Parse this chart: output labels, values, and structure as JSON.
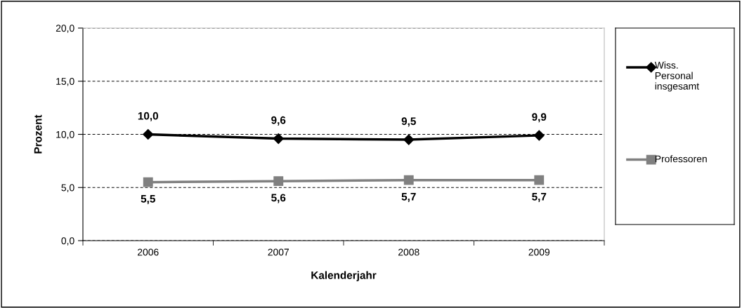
{
  "chart_data": {
    "type": "line",
    "xlabel": "Kalenderjahr",
    "ylabel": "Prozent",
    "categories": [
      "2006",
      "2007",
      "2008",
      "2009"
    ],
    "series": [
      {
        "name": "Wiss. Personal insgesamt",
        "color": "#000000",
        "marker": "diamond",
        "values": [
          10.0,
          9.6,
          9.5,
          9.9
        ],
        "value_labels": [
          "10,0",
          "9,6",
          "9,5",
          "9,9"
        ]
      },
      {
        "name": "Professoren",
        "color": "#808080",
        "marker": "square",
        "values": [
          5.5,
          5.6,
          5.7,
          5.7
        ],
        "value_labels": [
          "5,5",
          "5,6",
          "5,7",
          "5,7"
        ]
      }
    ],
    "ylim": [
      0,
      20
    ],
    "yticks": [
      {
        "value": 0,
        "label": "0,0"
      },
      {
        "value": 5,
        "label": "5,0"
      },
      {
        "value": 10,
        "label": "10,0"
      },
      {
        "value": 15,
        "label": "15,0"
      },
      {
        "value": 20,
        "label": "20,0"
      }
    ],
    "grid": "y",
    "line_style": "solid",
    "legend": "right"
  }
}
